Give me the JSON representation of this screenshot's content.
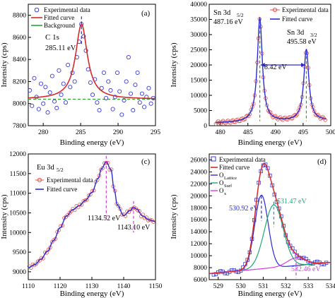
{
  "chart_data": [
    {
      "type": "scatter",
      "panel_label": "(a)",
      "xlabel": "Binding energy (eV)",
      "ylabel": "Intensity (cps)",
      "xlim": [
        278,
        295
      ],
      "ylim": [
        7800,
        8900
      ],
      "xticks": [
        280,
        285,
        290,
        295
      ],
      "yticks": [
        7800,
        8000,
        8200,
        8400,
        8600,
        8800
      ],
      "legend_position": "top-left",
      "legend": [
        "Experimental data",
        "Fitted curve",
        "Background"
      ],
      "annotations": [
        "C 1s",
        "285.11 eV"
      ],
      "peak_marker_x": 285.11,
      "series": [
        {
          "name": "Experimental data",
          "style": "circles",
          "color": "#3b3bd6",
          "x": [
            278.2,
            278.5,
            278.8,
            279.1,
            279.4,
            279.7,
            280.0,
            280.3,
            280.6,
            280.9,
            281.2,
            281.5,
            281.8,
            282.1,
            282.4,
            282.7,
            283.0,
            283.3,
            283.6,
            283.9,
            284.2,
            284.5,
            284.8,
            285.1,
            285.4,
            285.7,
            286.0,
            286.3,
            286.6,
            286.9,
            287.2,
            287.5,
            287.8,
            288.1,
            288.4,
            288.7,
            289.0,
            289.3,
            289.6,
            289.9,
            290.2,
            290.5,
            290.8,
            291.1,
            291.4,
            291.7,
            292.0,
            292.3,
            292.6,
            292.9,
            293.2,
            293.5,
            293.8,
            294.1,
            294.4,
            294.7
          ],
          "y": [
            8120,
            7980,
            8230,
            8060,
            7950,
            8180,
            8000,
            8150,
            7920,
            8100,
            8250,
            8020,
            7960,
            8300,
            8080,
            8180,
            8010,
            8350,
            8150,
            8280,
            8200,
            8420,
            8560,
            8720,
            8610,
            8480,
            8310,
            8190,
            8080,
            8220,
            8010,
            7940,
            8140,
            8280,
            8050,
            8200,
            8120,
            7950,
            8060,
            8280,
            8110,
            7900,
            8030,
            8200,
            8420,
            8090,
            7940,
            8170,
            8280,
            8010,
            8090,
            7970,
            8060,
            8140,
            8000,
            8050
          ]
        },
        {
          "name": "Fitted curve",
          "style": "line",
          "color": "#d42a2a",
          "model": {
            "base": 8040,
            "amp": 680,
            "center": 285.11,
            "hwhm": 0.95
          }
        },
        {
          "name": "Background",
          "style": "dashed-line",
          "color": "#2aa52a",
          "value": 8040
        }
      ]
    },
    {
      "type": "scatter",
      "panel_label": "(b)",
      "xlabel": "Binding energy (eV)",
      "ylabel": "Intensity (cps)",
      "xlim": [
        478,
        500
      ],
      "ylim": [
        0,
        40000
      ],
      "xticks": [
        480,
        485,
        490,
        495,
        500
      ],
      "yticks": [
        0,
        5000,
        10000,
        15000,
        20000,
        25000,
        30000,
        35000,
        40000
      ],
      "legend_position": "top-right",
      "legend": [
        "Experimental data",
        "Fitted curve"
      ],
      "annotations": [
        "Sn 3d",
        "5/2",
        "487.16 eV",
        "Sn 3d",
        "3/2",
        "495.58 eV",
        "8.42 eV"
      ],
      "peak_markers_x": [
        487.16,
        495.58
      ],
      "series": [
        {
          "name": "Experimental data",
          "style": "circles",
          "color": "#e0554f"
        },
        {
          "name": "Fitted curve",
          "style": "line",
          "color": "#2a2ad4",
          "model": {
            "base": 800,
            "slope": 40,
            "peaks": [
              {
                "center": 487.16,
                "amp": 34200,
                "hwhm": 0.55
              },
              {
                "center": 495.58,
                "amp": 23500,
                "hwhm": 0.55
              }
            ]
          }
        }
      ]
    },
    {
      "type": "scatter",
      "panel_label": "(c)",
      "xlabel": "Binding energy (eV)",
      "ylabel": "Intensity (cps)",
      "xlim": [
        1110,
        1150
      ],
      "ylim": [
        8800,
        12000
      ],
      "xticks": [
        1110,
        1120,
        1130,
        1140,
        1150
      ],
      "yticks": [
        9000,
        9500,
        10000,
        10500,
        11000,
        11500,
        12000
      ],
      "legend_position": "top-left",
      "legend": [
        "Experimental data",
        "Fitted curve"
      ],
      "annotations": [
        "Eu 3d",
        "5/2",
        "1134.52 eV",
        "1143.10 eV"
      ],
      "peak_markers_x": [
        1134.52,
        1143.1
      ],
      "series": [
        {
          "name": "Experimental data",
          "style": "circles",
          "color": "#e0554f"
        },
        {
          "name": "Fitted curve",
          "style": "line",
          "color": "#2a2ad4",
          "knots": [
            [
              1110,
              9100
            ],
            [
              1112,
              9180
            ],
            [
              1114,
              9320
            ],
            [
              1116,
              9520
            ],
            [
              1118,
              9800
            ],
            [
              1120,
              10120
            ],
            [
              1122,
              10420
            ],
            [
              1124,
              10580
            ],
            [
              1126,
              10680
            ],
            [
              1128,
              10820
            ],
            [
              1130,
              11020
            ],
            [
              1132,
              11380
            ],
            [
              1133,
              11620
            ],
            [
              1134.5,
              11800
            ],
            [
              1136,
              11600
            ],
            [
              1137,
              11100
            ],
            [
              1138,
              10700
            ],
            [
              1140,
              10430
            ],
            [
              1142,
              10560
            ],
            [
              1143.1,
              10640
            ],
            [
              1144,
              10600
            ],
            [
              1146,
              10420
            ],
            [
              1148,
              10320
            ],
            [
              1150,
              10280
            ]
          ]
        }
      ]
    },
    {
      "type": "scatter",
      "panel_label": "(d)",
      "xlabel": "Binding energy (eV)",
      "ylabel": "Intensity (cps)",
      "xlim": [
        528.6,
        534
      ],
      "ylim": [
        6000,
        27000
      ],
      "xticks": [
        529,
        530,
        531,
        532,
        533,
        534
      ],
      "yticks": [
        6000,
        8000,
        10000,
        12000,
        14000,
        16000,
        18000,
        20000,
        22000,
        24000,
        26000
      ],
      "legend_position": "top-left",
      "legend": [
        "Experimental data",
        "Fitted curve",
        "O",
        "Lattice",
        "O",
        "Surf",
        "O",
        "x"
      ],
      "annotations": [
        "530.92 eV",
        "531.47 eV",
        "532.46 eV"
      ],
      "peak_markers_x": [
        530.92,
        531.47,
        532.46
      ],
      "series": [
        {
          "name": "Experimental data",
          "style": "squares",
          "color": "#3b3bd6"
        },
        {
          "name": "Fitted curve",
          "style": "line",
          "color": "#d42a2a"
        },
        {
          "name": "O Lattice",
          "style": "line",
          "color": "#2a2ad4",
          "model": {
            "center": 530.92,
            "amp": 12300,
            "sigma": 0.3
          }
        },
        {
          "name": "O Surf",
          "style": "line",
          "color": "#1fa77a",
          "model": {
            "center": 531.47,
            "amp": 10500,
            "sigma": 0.42
          }
        },
        {
          "name": "O x",
          "style": "line",
          "color": "#d23fd2",
          "model": {
            "center": 532.46,
            "amp": 1300,
            "sigma": 0.4
          }
        },
        {
          "name": "Baseline",
          "style": "none",
          "model": {
            "base": 7000,
            "slope": 350,
            "x0": 528.6
          }
        }
      ]
    }
  ]
}
